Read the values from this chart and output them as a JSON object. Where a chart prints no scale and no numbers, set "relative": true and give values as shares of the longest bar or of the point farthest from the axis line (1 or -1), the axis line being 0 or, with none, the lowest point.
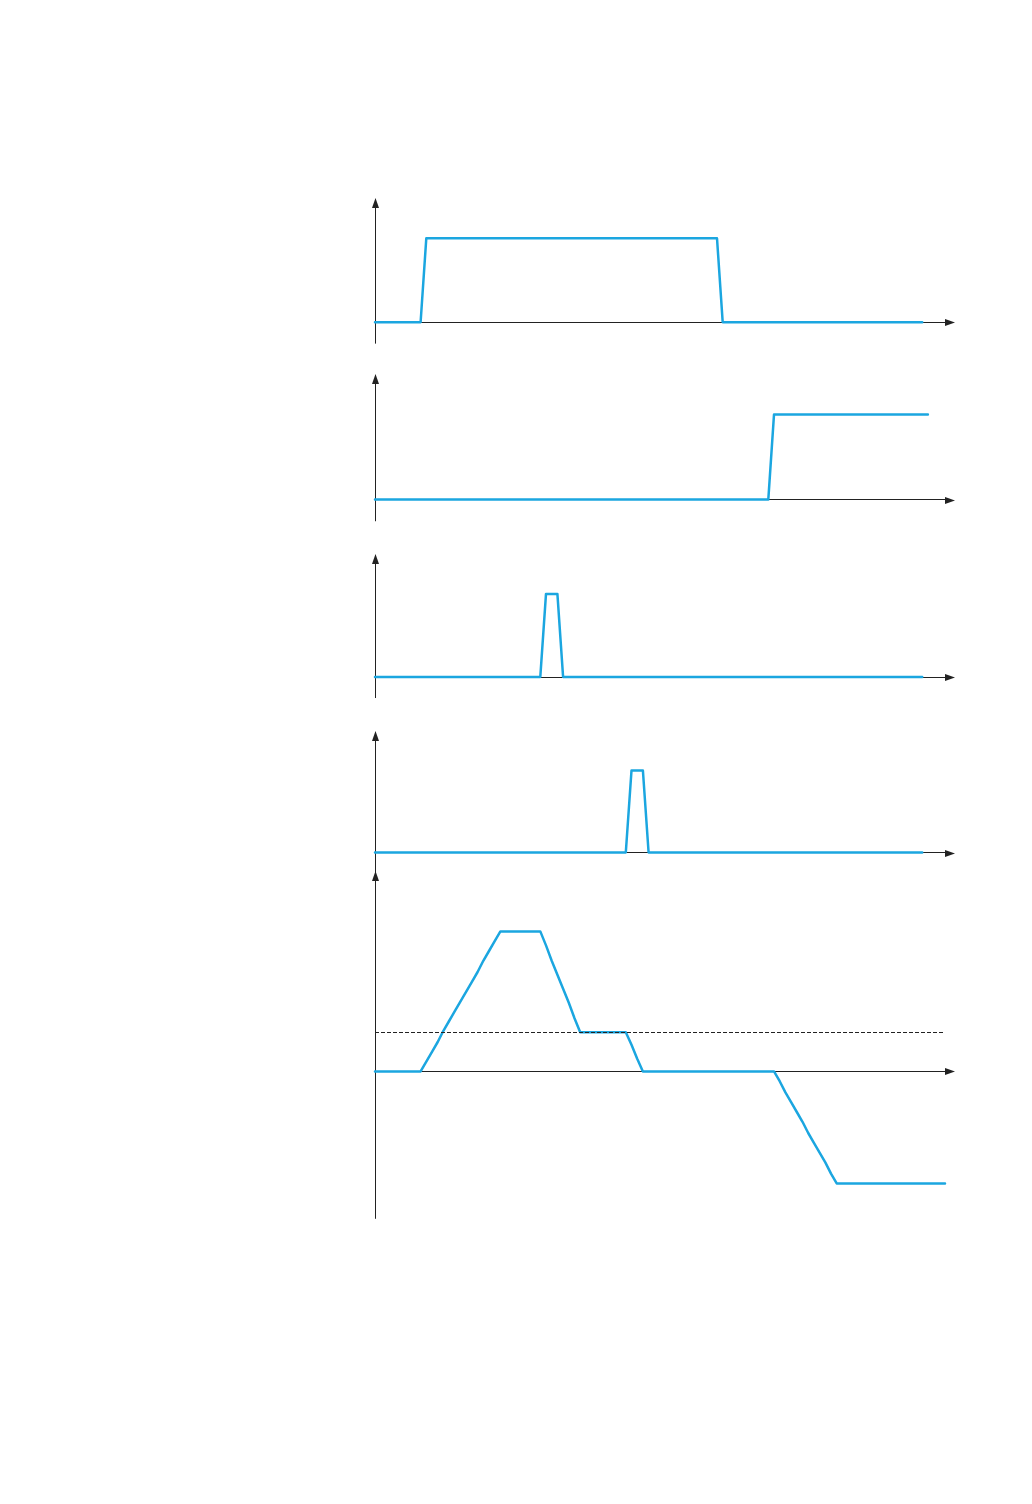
{
  "chart_data": [
    {
      "type": "line",
      "relative": true,
      "categories": [
        null,
        null,
        null,
        null,
        null,
        null,
        null,
        null,
        null,
        null,
        null,
        null,
        null,
        null,
        null,
        null,
        null,
        null,
        null,
        null,
        null,
        null,
        null,
        null,
        null,
        null,
        null,
        null,
        null,
        null,
        null,
        null,
        null,
        null,
        null,
        null,
        null,
        null,
        null,
        null,
        null,
        null,
        null,
        null,
        null,
        null,
        null,
        null,
        null,
        null,
        null,
        null,
        null,
        null,
        null,
        null,
        null,
        null,
        null,
        null,
        null,
        null,
        null,
        null,
        null,
        null,
        null,
        null,
        null,
        null,
        null,
        null,
        null,
        null,
        null,
        null,
        null,
        null,
        null,
        null,
        null,
        null,
        null,
        null,
        null,
        null,
        null,
        null,
        null,
        null,
        null,
        null,
        null,
        null,
        null,
        null,
        null,
        null,
        null,
        null,
        null
      ],
      "values": [
        0,
        0,
        0,
        0,
        0,
        0,
        0,
        0,
        0,
        1,
        1,
        1,
        1,
        1,
        1,
        1,
        1,
        1,
        1,
        1,
        1,
        1,
        1,
        1,
        1,
        1,
        1,
        1,
        1,
        1,
        1,
        1,
        1,
        1,
        1,
        1,
        1,
        1,
        1,
        1,
        1,
        1,
        1,
        1,
        1,
        1,
        1,
        1,
        1,
        1,
        1,
        1,
        1,
        1,
        1,
        1,
        1,
        1,
        1,
        1,
        1,
        0,
        0,
        0,
        0,
        0,
        0,
        0,
        0,
        0,
        0,
        0,
        0,
        0,
        0,
        0,
        0,
        0,
        0,
        0,
        0,
        0,
        0,
        0,
        0,
        0,
        0,
        0,
        0,
        0,
        0,
        0,
        0,
        0,
        0,
        0,
        0,
        null,
        null,
        null,
        null
      ],
      "color": "#1ba6e0",
      "grid": false,
      "marker": "none",
      "line_style": "solid"
    },
    {
      "type": "line",
      "relative": true,
      "categories": [
        null,
        null,
        null,
        null,
        null,
        null,
        null,
        null,
        null,
        null,
        null,
        null,
        null,
        null,
        null,
        null,
        null,
        null,
        null,
        null,
        null,
        null,
        null,
        null,
        null,
        null,
        null,
        null,
        null,
        null,
        null,
        null,
        null,
        null,
        null,
        null,
        null,
        null,
        null,
        null,
        null,
        null,
        null,
        null,
        null,
        null,
        null,
        null,
        null,
        null,
        null,
        null,
        null,
        null,
        null,
        null,
        null,
        null,
        null,
        null,
        null,
        null,
        null,
        null,
        null,
        null,
        null,
        null,
        null,
        null,
        null,
        null,
        null,
        null,
        null,
        null,
        null,
        null,
        null,
        null,
        null,
        null,
        null,
        null,
        null,
        null,
        null,
        null,
        null,
        null,
        null,
        null,
        null,
        null,
        null,
        null,
        null,
        null,
        null,
        null,
        null
      ],
      "values": [
        0,
        0,
        0,
        0,
        0,
        0,
        0,
        0,
        0,
        0,
        0,
        0,
        0,
        0,
        0,
        0,
        0,
        0,
        0,
        0,
        0,
        0,
        0,
        0,
        0,
        0,
        0,
        0,
        0,
        0,
        0,
        0,
        0,
        0,
        0,
        0,
        0,
        0,
        0,
        0,
        0,
        0,
        0,
        0,
        0,
        0,
        0,
        0,
        0,
        0,
        0,
        0,
        0,
        0,
        0,
        0,
        0,
        0,
        0,
        0,
        0,
        0,
        0,
        0,
        0,
        0,
        0,
        0,
        0,
        0,
        1,
        1,
        1,
        1,
        1,
        1,
        1,
        1,
        1,
        1,
        1,
        1,
        1,
        1,
        1,
        1,
        1,
        1,
        1,
        1,
        1,
        1,
        1,
        1,
        1,
        1,
        1,
        1,
        null,
        null,
        null
      ],
      "color": "#1ba6e0",
      "grid": false,
      "marker": "none",
      "line_style": "solid"
    },
    {
      "type": "line",
      "relative": true,
      "categories": [
        null,
        null,
        null,
        null,
        null,
        null,
        null,
        null,
        null,
        null,
        null,
        null,
        null,
        null,
        null,
        null,
        null,
        null,
        null,
        null,
        null,
        null,
        null,
        null,
        null,
        null,
        null,
        null,
        null,
        null,
        null,
        null,
        null,
        null,
        null,
        null,
        null,
        null,
        null,
        null,
        null,
        null,
        null,
        null,
        null,
        null,
        null,
        null,
        null,
        null,
        null,
        null,
        null,
        null,
        null,
        null,
        null,
        null,
        null,
        null,
        null,
        null,
        null,
        null,
        null,
        null,
        null,
        null,
        null,
        null,
        null,
        null,
        null,
        null,
        null,
        null,
        null,
        null,
        null,
        null,
        null,
        null,
        null,
        null,
        null,
        null,
        null,
        null,
        null,
        null,
        null,
        null,
        null,
        null,
        null,
        null,
        null,
        null,
        null,
        null,
        null
      ],
      "values": [
        0,
        0,
        0,
        0,
        0,
        0,
        0,
        0,
        0,
        0,
        0,
        0,
        0,
        0,
        0,
        0,
        0,
        0,
        0,
        0,
        0,
        0,
        0,
        0,
        0,
        0,
        0,
        0,
        0,
        0,
        1,
        1,
        1,
        0,
        0,
        0,
        0,
        0,
        0,
        0,
        0,
        0,
        0,
        0,
        0,
        0,
        0,
        0,
        0,
        0,
        0,
        0,
        0,
        0,
        0,
        0,
        0,
        0,
        0,
        0,
        0,
        0,
        0,
        0,
        0,
        0,
        0,
        0,
        0,
        0,
        0,
        0,
        0,
        0,
        0,
        0,
        0,
        0,
        0,
        0,
        0,
        0,
        0,
        0,
        0,
        0,
        0,
        0,
        0,
        0,
        0,
        0,
        0,
        0,
        0,
        0,
        0,
        null,
        null,
        null,
        null
      ],
      "color": "#1ba6e0",
      "grid": false,
      "marker": "none",
      "line_style": "solid"
    },
    {
      "type": "line",
      "relative": true,
      "categories": [
        null,
        null,
        null,
        null,
        null,
        null,
        null,
        null,
        null,
        null,
        null,
        null,
        null,
        null,
        null,
        null,
        null,
        null,
        null,
        null,
        null,
        null,
        null,
        null,
        null,
        null,
        null,
        null,
        null,
        null,
        null,
        null,
        null,
        null,
        null,
        null,
        null,
        null,
        null,
        null,
        null,
        null,
        null,
        null,
        null,
        null,
        null,
        null,
        null,
        null,
        null,
        null,
        null,
        null,
        null,
        null,
        null,
        null,
        null,
        null,
        null,
        null,
        null,
        null,
        null,
        null,
        null,
        null,
        null,
        null,
        null,
        null,
        null,
        null,
        null,
        null,
        null,
        null,
        null,
        null,
        null,
        null,
        null,
        null,
        null,
        null,
        null,
        null,
        null,
        null,
        null,
        null,
        null,
        null,
        null,
        null,
        null,
        null,
        null,
        null,
        null
      ],
      "values": [
        0,
        0,
        0,
        0,
        0,
        0,
        0,
        0,
        0,
        0,
        0,
        0,
        0,
        0,
        0,
        0,
        0,
        0,
        0,
        0,
        0,
        0,
        0,
        0,
        0,
        0,
        0,
        0,
        0,
        0,
        0,
        0,
        0,
        0,
        0,
        0,
        0,
        0,
        0,
        0,
        0,
        0,
        0,
        0,
        0,
        1,
        1,
        1,
        0,
        0,
        0,
        0,
        0,
        0,
        0,
        0,
        0,
        0,
        0,
        0,
        0,
        0,
        0,
        0,
        0,
        0,
        0,
        0,
        0,
        0,
        0,
        0,
        0,
        0,
        0,
        0,
        0,
        0,
        0,
        0,
        0,
        0,
        0,
        0,
        0,
        0,
        0,
        0,
        0,
        0,
        0,
        0,
        0,
        0,
        0,
        0,
        0,
        null,
        null,
        null,
        null
      ],
      "color": "#1ba6e0",
      "grid": false,
      "marker": "none",
      "line_style": "solid"
    },
    {
      "type": "line",
      "relative": true,
      "categories": [
        null,
        null,
        null,
        null,
        null,
        null,
        null,
        null,
        null,
        null,
        null,
        null,
        null,
        null,
        null,
        null,
        null,
        null,
        null,
        null,
        null,
        null,
        null,
        null,
        null,
        null,
        null,
        null,
        null,
        null,
        null,
        null,
        null,
        null,
        null,
        null,
        null,
        null,
        null,
        null,
        null,
        null,
        null,
        null,
        null,
        null,
        null,
        null,
        null,
        null,
        null,
        null,
        null,
        null,
        null,
        null,
        null,
        null,
        null,
        null,
        null,
        null,
        null,
        null,
        null,
        null,
        null,
        null,
        null,
        null,
        null,
        null,
        null,
        null,
        null,
        null,
        null,
        null,
        null,
        null,
        null,
        null,
        null,
        null,
        null,
        null,
        null,
        null,
        null,
        null,
        null,
        null,
        null,
        null,
        null,
        null,
        null,
        null,
        null,
        null,
        null
      ],
      "values": [
        0,
        0,
        0,
        0,
        0,
        0,
        0,
        0,
        0,
        0.07,
        0.14,
        0.21,
        0.29,
        0.36,
        0.43,
        0.5,
        0.57,
        0.64,
        0.71,
        0.79,
        0.86,
        0.93,
        1,
        1,
        1,
        1,
        1,
        1,
        1,
        1,
        0.9,
        0.79,
        0.69,
        0.59,
        0.49,
        0.38,
        0.28,
        0.28,
        0.28,
        0.28,
        0.28,
        0.28,
        0.28,
        0.28,
        0.28,
        0.19,
        0.09,
        0,
        0,
        0,
        0,
        0,
        0,
        0,
        0,
        0,
        0,
        0,
        0,
        0,
        0,
        0,
        0,
        0,
        0,
        0,
        0,
        0,
        0,
        0,
        0,
        -0.07,
        -0.15,
        -0.22,
        -0.29,
        -0.36,
        -0.44,
        -0.51,
        -0.58,
        -0.65,
        -0.73,
        -0.8,
        -0.8,
        -0.8,
        -0.8,
        -0.8,
        -0.8,
        -0.8,
        -0.8,
        -0.8,
        -0.8,
        -0.8,
        -0.8,
        -0.8,
        -0.8,
        -0.8,
        -0.8,
        -0.8,
        -0.8,
        -0.8,
        -0.8
      ],
      "color": "#1ba6e0",
      "grid": false,
      "marker": "none",
      "line_style": "solid",
      "ref_lines": [
        {
          "axis": "y",
          "value": 0.28
        }
      ]
    }
  ]
}
